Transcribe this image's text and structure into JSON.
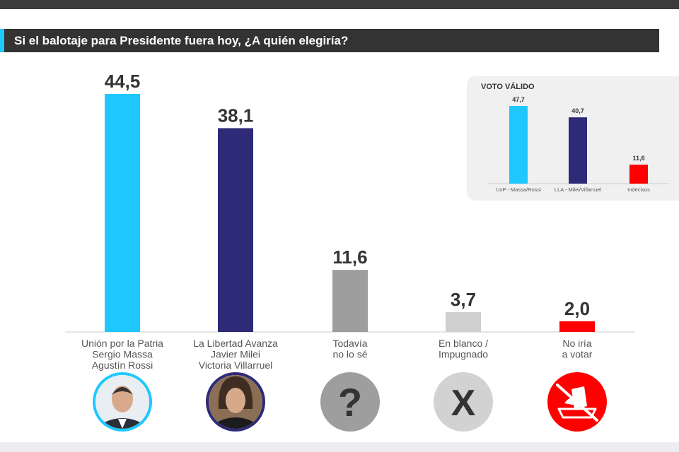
{
  "title": "Si el balotaje para Presidente fuera hoy, ¿A quién elegiría?",
  "colors": {
    "accent": "#1ec8ff",
    "massa": "#1ec8ff",
    "milei": "#2d2a78",
    "todavia": "#9e9e9e",
    "blanco": "#cfcfcf",
    "noiria": "#ff0000"
  },
  "chart_data": [
    {
      "type": "bar",
      "title": "Si el balotaje para Presidente fuera hoy, ¿A quién elegiría?",
      "categories": [
        [
          "Unión por la Patria",
          "Sergio Massa",
          "Agustín Rossi"
        ],
        [
          "La Libertad Avanza",
          "Javier Milei",
          "Victoria Villarruel"
        ],
        [
          "Todavía",
          "no lo sé"
        ],
        [
          "En blanco /",
          "Impugnado"
        ],
        [
          "No iría",
          "a votar"
        ]
      ],
      "values": [
        44.5,
        38.1,
        11.6,
        3.7,
        2.0
      ],
      "value_labels": [
        "44,5",
        "38,1",
        "11,6",
        "3,7",
        "2,0"
      ],
      "colors": [
        "#1ec8ff",
        "#2d2a78",
        "#9e9e9e",
        "#cfcfcf",
        "#ff0000"
      ],
      "icons": [
        "massa-photo-icon",
        "milei-photo-icon",
        "question-mark-icon",
        "x-mark-icon",
        "crossed-ballot-box-icon"
      ],
      "icon_glyphs": [
        "",
        "",
        "?",
        "X",
        ""
      ],
      "ylim": [
        0,
        44.5
      ],
      "grid": false,
      "legend": "none"
    },
    {
      "type": "bar",
      "title": "VOTO VÁLIDO",
      "categories": [
        "UxP - Massa/Rossi",
        "LLA - Milei/Villarruel",
        "Indecisos"
      ],
      "values": [
        47.7,
        40.7,
        11.6
      ],
      "value_labels": [
        "47,7",
        "40,7",
        "11,6"
      ],
      "colors": [
        "#1ec8ff",
        "#2d2a78",
        "#ff0000"
      ],
      "ylim": [
        0,
        47.7
      ],
      "grid": false,
      "legend": "none"
    }
  ]
}
